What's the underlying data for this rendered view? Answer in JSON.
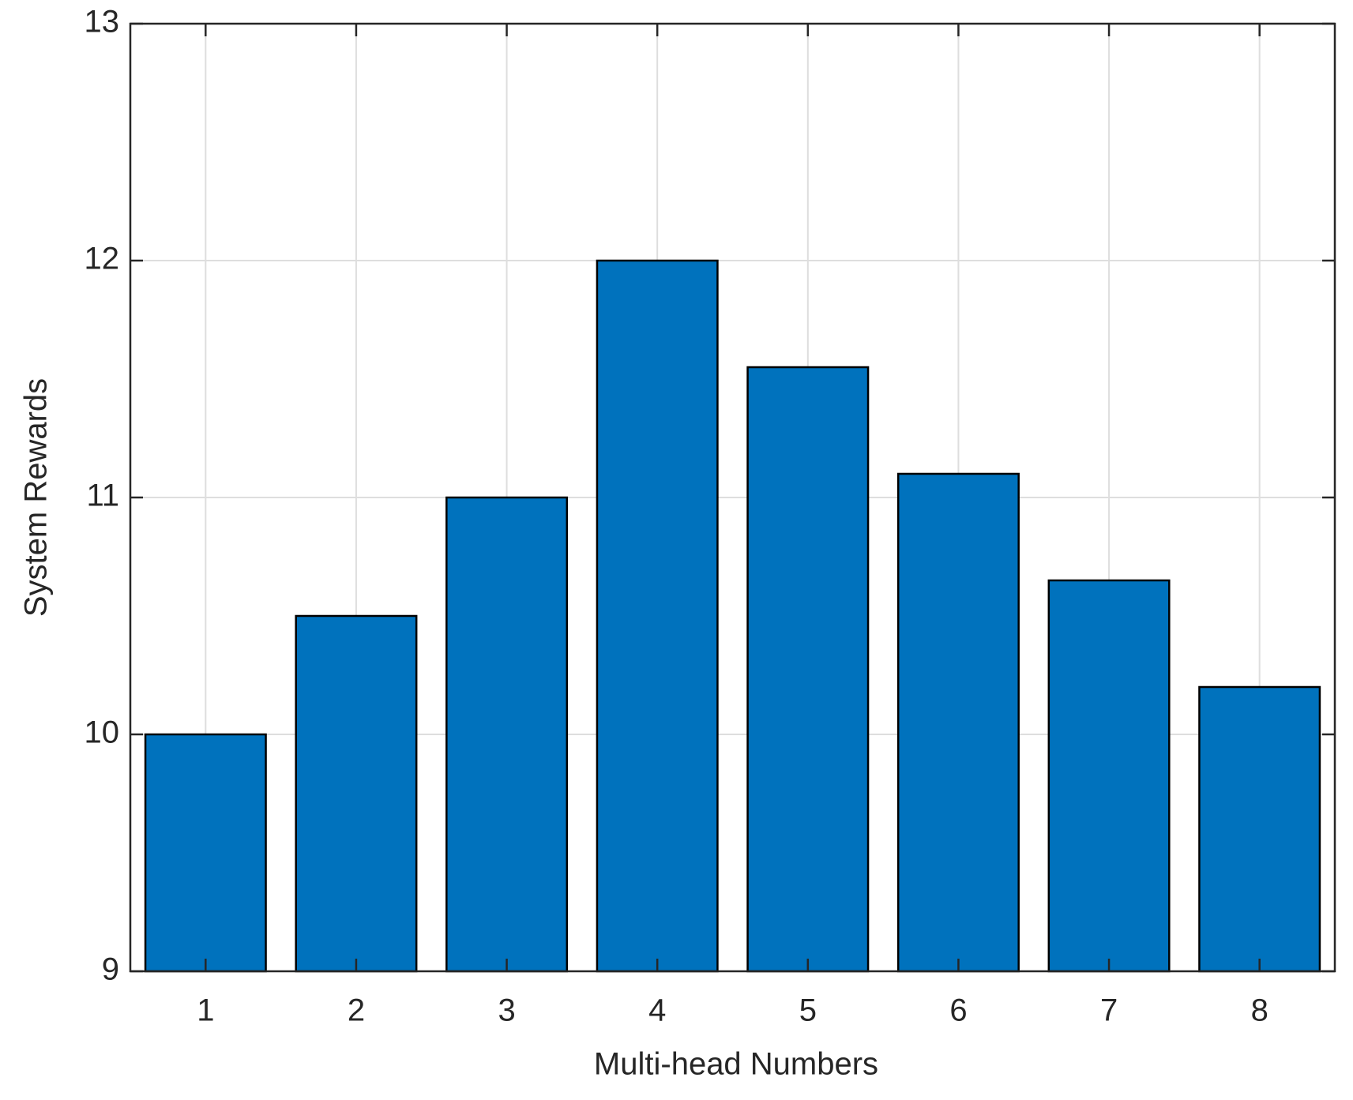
{
  "chart_data": {
    "type": "bar",
    "x_label": "Multi-head Numbers",
    "y_label": "System Rewards",
    "x": [
      1,
      2,
      3,
      4,
      5,
      6,
      7,
      8
    ],
    "values": [
      10,
      10.5,
      11,
      12,
      11.55,
      11.1,
      10.65,
      10.2
    ],
    "color": "#0072bd",
    "xlim": [
      0.5,
      8.5
    ],
    "xticks": [
      1,
      2,
      3,
      4,
      5,
      6,
      7,
      8
    ],
    "ylim": [
      9,
      13
    ],
    "yticks": [
      9,
      10,
      11,
      12,
      13
    ],
    "grid": true
  }
}
